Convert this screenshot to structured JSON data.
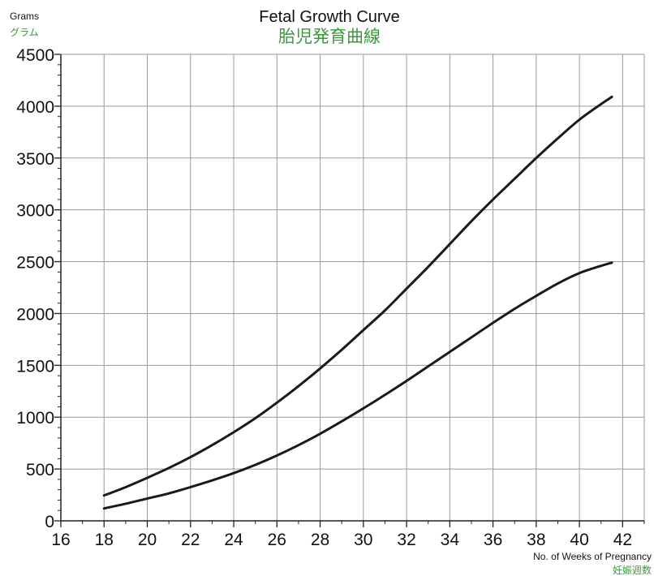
{
  "colors": {
    "japanese_text": "#3a9a3a",
    "curve": "#1a1a1a",
    "grid": "#9a9a9a",
    "axis": "#222222"
  },
  "chart_data": {
    "type": "line",
    "title": "Fetal Growth Curve",
    "subtitle": "胎児発育曲線",
    "ylabel": "Grams",
    "ylabel_jp": "グラム",
    "xlabel": "No. of Weeks of Pregnancy",
    "xlabel_jp": "妊娠週数",
    "xlim": [
      16,
      43
    ],
    "ylim": [
      0,
      4500
    ],
    "x_ticks": [
      16,
      18,
      20,
      22,
      24,
      26,
      28,
      30,
      32,
      34,
      36,
      38,
      40,
      42
    ],
    "y_ticks": [
      0,
      500,
      1000,
      1500,
      2000,
      2500,
      3000,
      3500,
      4000,
      4500
    ],
    "x_minor_tick_step": 1,
    "y_minor_tick_step": 100,
    "grid": true,
    "series": [
      {
        "x": [
          18,
          19,
          20,
          21,
          22,
          23,
          24,
          25,
          26,
          27,
          28,
          29,
          30,
          31,
          32,
          33,
          34,
          35,
          36,
          37,
          38,
          39,
          40,
          41,
          41.5
        ],
        "y": [
          245,
          325,
          415,
          510,
          615,
          730,
          855,
          990,
          1140,
          1300,
          1470,
          1650,
          1840,
          2030,
          2240,
          2450,
          2670,
          2890,
          3100,
          3300,
          3500,
          3690,
          3870,
          4020,
          4090
        ]
      },
      {
        "x": [
          18,
          19,
          20,
          21,
          22,
          23,
          24,
          25,
          26,
          27,
          28,
          29,
          30,
          31,
          32,
          33,
          34,
          35,
          36,
          37,
          38,
          39,
          40,
          41,
          41.5
        ],
        "y": [
          120,
          165,
          215,
          265,
          325,
          390,
          460,
          540,
          630,
          730,
          840,
          960,
          1085,
          1215,
          1350,
          1490,
          1630,
          1770,
          1910,
          2045,
          2170,
          2290,
          2390,
          2460,
          2490
        ]
      }
    ]
  }
}
